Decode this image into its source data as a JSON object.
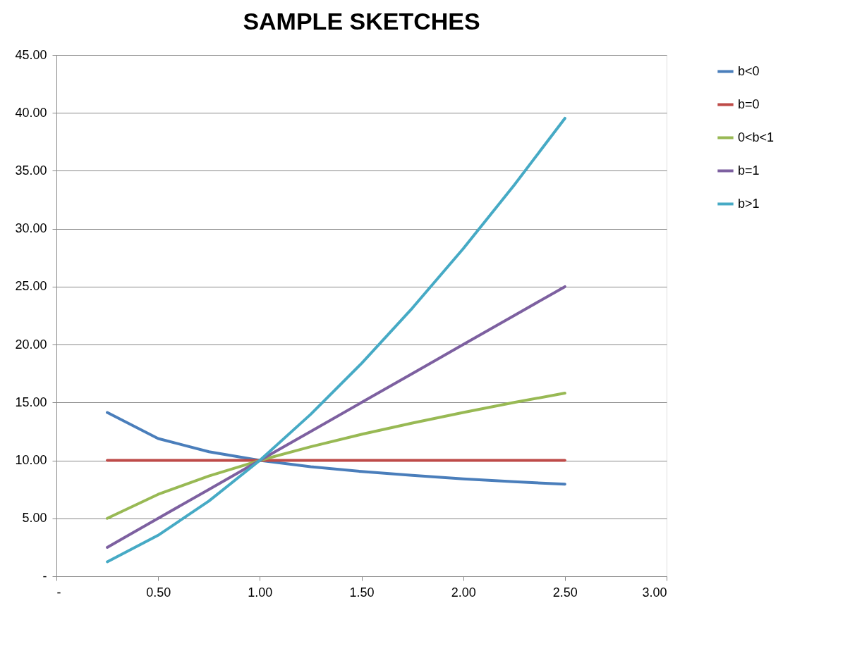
{
  "chart_data": {
    "type": "line",
    "title": "SAMPLE SKETCHES",
    "x": [
      0.25,
      0.5,
      0.75,
      1,
      1.25,
      1.5,
      1.75,
      2,
      2.25,
      2.5
    ],
    "series": [
      {
        "name": "b<0",
        "color": "#4a7ebb",
        "values": [
          14.14,
          11.89,
          10.75,
          10,
          9.46,
          9.04,
          8.71,
          8.41,
          8.16,
          7.95
        ]
      },
      {
        "name": "b=0",
        "color": "#be4b48",
        "values": [
          10,
          10,
          10,
          10,
          10,
          10,
          10,
          10,
          10,
          10
        ]
      },
      {
        "name": "0<b<1",
        "color": "#98b954",
        "values": [
          5,
          7.07,
          8.66,
          10,
          11.18,
          12.25,
          13.23,
          14.14,
          15,
          15.81
        ]
      },
      {
        "name": "b=1",
        "color": "#7d60a0",
        "values": [
          2.5,
          5,
          7.5,
          10,
          12.5,
          15,
          17.5,
          20,
          22.5,
          25
        ]
      },
      {
        "name": "b>1",
        "color": "#46aac5",
        "values": [
          1.25,
          3.54,
          6.5,
          10,
          13.98,
          18.37,
          23.15,
          28.28,
          33.75,
          39.53
        ]
      }
    ],
    "xlim": [
      0,
      3
    ],
    "xticks": [
      {
        "value": 0,
        "label": "-"
      },
      {
        "value": 0.5,
        "label": "0.50"
      },
      {
        "value": 1,
        "label": "1.00"
      },
      {
        "value": 1.5,
        "label": "1.50"
      },
      {
        "value": 2,
        "label": "2.00"
      },
      {
        "value": 2.5,
        "label": "2.50"
      },
      {
        "value": 3,
        "label": "3.00"
      }
    ],
    "ylim": [
      0,
      45
    ],
    "yticks": [
      {
        "value": 0,
        "label": "-"
      },
      {
        "value": 5,
        "label": "5.00"
      },
      {
        "value": 10,
        "label": "10.00"
      },
      {
        "value": 15,
        "label": "15.00"
      },
      {
        "value": 20,
        "label": "20.00"
      },
      {
        "value": 25,
        "label": "25.00"
      },
      {
        "value": 30,
        "label": "30.00"
      },
      {
        "value": 35,
        "label": "35.00"
      },
      {
        "value": 40,
        "label": "40.00"
      },
      {
        "value": 45,
        "label": "45.00"
      }
    ],
    "grid": "y",
    "legend": "right",
    "marker": "none",
    "line_style": "solid"
  }
}
